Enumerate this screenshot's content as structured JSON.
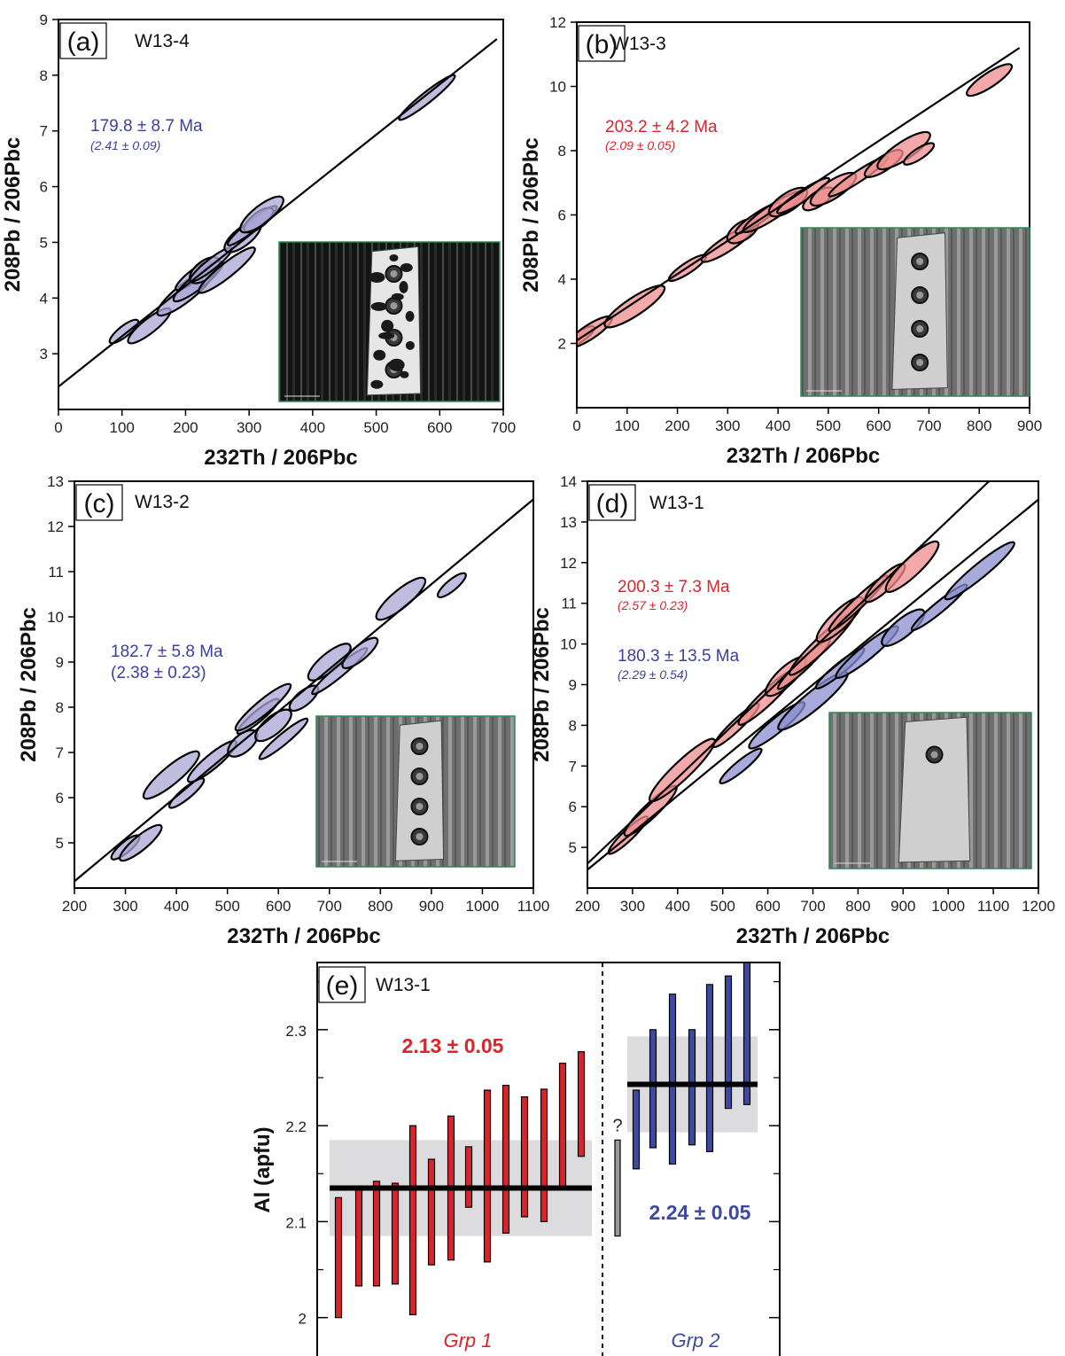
{
  "chart_data": [
    {
      "type": "scatter",
      "panel": "(a)",
      "sample": "W13-4",
      "xlabel": "232Th / 206Pbc",
      "ylabel": "208Pb / 206Pbc",
      "xlim": [
        0,
        700
      ],
      "ylim": [
        2,
        9
      ],
      "xticks": [
        0,
        100,
        200,
        300,
        400,
        500,
        600,
        700
      ],
      "yticks": [
        3,
        4,
        5,
        6,
        7,
        8,
        9
      ],
      "annotations": [
        {
          "text": "179.8 ± 8.7 Ma",
          "color": "#3b3fa0"
        },
        {
          "text": "(2.41 ± 0.09)",
          "color": "#3b3fa0",
          "italic": true
        }
      ],
      "isochrons": [
        {
          "x0": 0,
          "y0": 2.41,
          "x1": 690,
          "y1": 8.65
        }
      ],
      "series": [
        {
          "color": "#a9a6d6",
          "points": [
            {
              "x": 103,
              "y": 3.4
            },
            {
              "x": 143,
              "y": 3.5
            },
            {
              "x": 200,
              "y": 4.1
            },
            {
              "x": 212,
              "y": 4.4
            },
            {
              "x": 220,
              "y": 4.3
            },
            {
              "x": 230,
              "y": 4.5
            },
            {
              "x": 240,
              "y": 4.6
            },
            {
              "x": 265,
              "y": 4.5
            },
            {
              "x": 290,
              "y": 5.1
            },
            {
              "x": 305,
              "y": 5.3
            },
            {
              "x": 315,
              "y": 5.4
            },
            {
              "x": 320,
              "y": 5.5
            },
            {
              "x": 580,
              "y": 7.6
            }
          ]
        }
      ],
      "inset": "BSE image"
    },
    {
      "type": "scatter",
      "panel": "(b)",
      "sample": "W13-3",
      "xlabel": "232Th / 206Pbc",
      "ylabel": "208Pb / 206Pbc",
      "xlim": [
        0,
        900
      ],
      "ylim": [
        0,
        12
      ],
      "xticks": [
        0,
        100,
        200,
        300,
        400,
        500,
        600,
        700,
        800,
        900
      ],
      "yticks": [
        2,
        4,
        6,
        8,
        10,
        12
      ],
      "annotations": [
        {
          "text": "203.2 ± 4.2 Ma",
          "color": "#d9242b"
        },
        {
          "text": "(2.09 ± 0.05)",
          "color": "#d9242b",
          "italic": true
        }
      ],
      "isochrons": [
        {
          "x0": 0,
          "y0": 2.09,
          "x1": 880,
          "y1": 11.2
        }
      ],
      "series": [
        {
          "color": "#ef8c8c",
          "points": [
            {
              "x": 5,
              "y": 2.2
            },
            {
              "x": 25,
              "y": 2.35
            },
            {
              "x": 115,
              "y": 3.15
            },
            {
              "x": 220,
              "y": 4.35
            },
            {
              "x": 300,
              "y": 5.1
            },
            {
              "x": 330,
              "y": 5.5
            },
            {
              "x": 360,
              "y": 5.9
            },
            {
              "x": 390,
              "y": 6.1
            },
            {
              "x": 420,
              "y": 6.4
            },
            {
              "x": 450,
              "y": 6.6
            },
            {
              "x": 480,
              "y": 6.5
            },
            {
              "x": 510,
              "y": 6.8
            },
            {
              "x": 560,
              "y": 7.2
            },
            {
              "x": 610,
              "y": 7.6
            },
            {
              "x": 650,
              "y": 8.0
            },
            {
              "x": 680,
              "y": 7.9
            },
            {
              "x": 820,
              "y": 10.2
            }
          ]
        }
      ],
      "inset": "BSE image"
    },
    {
      "type": "scatter",
      "panel": "(c)",
      "sample": "W13-2",
      "xlabel": "232Th / 206Pbc",
      "ylabel": "208Pb / 206Pbc",
      "xlim": [
        200,
        1100
      ],
      "ylim": [
        4,
        13
      ],
      "xticks": [
        200,
        300,
        400,
        500,
        600,
        700,
        800,
        900,
        1000,
        1100
      ],
      "yticks": [
        5,
        6,
        7,
        8,
        9,
        10,
        11,
        12,
        13
      ],
      "annotations": [
        {
          "text": "182.7 ± 5.8 Ma",
          "color": "#3b3fa0"
        },
        {
          "text": "(2.38 ± 0.23)",
          "color": "#3b3fa0"
        }
      ],
      "isochrons": [
        {
          "x0": 200,
          "y0": 4.15,
          "x1": 1100,
          "y1": 12.6
        }
      ],
      "series": [
        {
          "color": "#a9a6d6",
          "points": [
            {
              "x": 300,
              "y": 4.9
            },
            {
              "x": 330,
              "y": 5.0
            },
            {
              "x": 390,
              "y": 6.5
            },
            {
              "x": 420,
              "y": 6.1
            },
            {
              "x": 470,
              "y": 6.8
            },
            {
              "x": 530,
              "y": 7.2
            },
            {
              "x": 560,
              "y": 7.8
            },
            {
              "x": 570,
              "y": 8.0
            },
            {
              "x": 590,
              "y": 7.6
            },
            {
              "x": 610,
              "y": 7.3
            },
            {
              "x": 650,
              "y": 8.2
            },
            {
              "x": 700,
              "y": 9.0
            },
            {
              "x": 720,
              "y": 8.8
            },
            {
              "x": 760,
              "y": 9.2
            },
            {
              "x": 840,
              "y": 10.4
            },
            {
              "x": 940,
              "y": 10.7
            }
          ]
        }
      ],
      "inset": "BSE image"
    },
    {
      "type": "scatter",
      "panel": "(d)",
      "sample": "W13-1",
      "xlabel": "232Th / 206Pbc",
      "ylabel": "208Pb / 206Pbc",
      "xlim": [
        200,
        1200
      ],
      "ylim": [
        4,
        14
      ],
      "xticks": [
        200,
        300,
        400,
        500,
        600,
        700,
        800,
        900,
        1000,
        1100,
        1200
      ],
      "yticks": [
        5,
        6,
        7,
        8,
        9,
        10,
        11,
        12,
        13,
        14
      ],
      "annotations": [
        {
          "text": "200.3 ± 7.3 Ma",
          "color": "#d9242b"
        },
        {
          "text": "(2.57 ± 0.23)",
          "color": "#d9242b",
          "italic": true
        },
        {
          "text": "180.3 ± 13.5 Ma",
          "color": "#3b3fa0"
        },
        {
          "text": "(2.29 ± 0.54)",
          "color": "#3b3fa0",
          "italic": true
        }
      ],
      "isochrons": [
        {
          "x0": 200,
          "y0": 4.6,
          "x1": 1100,
          "y1": 14.1
        },
        {
          "x0": 200,
          "y0": 4.45,
          "x1": 1200,
          "y1": 13.55
        }
      ],
      "series": [
        {
          "color": "#ef8c8c",
          "points": [
            {
              "x": 290,
              "y": 5.3
            },
            {
              "x": 340,
              "y": 5.9
            },
            {
              "x": 410,
              "y": 6.9
            },
            {
              "x": 530,
              "y": 8.0
            },
            {
              "x": 600,
              "y": 8.7
            },
            {
              "x": 640,
              "y": 9.2
            },
            {
              "x": 680,
              "y": 9.5
            },
            {
              "x": 720,
              "y": 10.0
            },
            {
              "x": 760,
              "y": 10.6
            },
            {
              "x": 800,
              "y": 11.0
            },
            {
              "x": 860,
              "y": 11.5
            },
            {
              "x": 920,
              "y": 11.9
            }
          ]
        },
        {
          "color": "#8b8ed0",
          "points": [
            {
              "x": 540,
              "y": 7.0
            },
            {
              "x": 620,
              "y": 8.0
            },
            {
              "x": 700,
              "y": 8.6
            },
            {
              "x": 760,
              "y": 9.4
            },
            {
              "x": 820,
              "y": 9.8
            },
            {
              "x": 900,
              "y": 10.4
            },
            {
              "x": 980,
              "y": 10.9
            },
            {
              "x": 1070,
              "y": 11.8
            }
          ]
        }
      ],
      "inset": "BSE image"
    },
    {
      "type": "bar",
      "panel": "(e)",
      "sample": "W13-1",
      "ylabel": "Al (apfu)",
      "ylim": [
        1.96,
        2.37
      ],
      "yticks": [
        2,
        2.1,
        2.2,
        2.3
      ],
      "groups": [
        {
          "name": "Grp 1",
          "color": "#d9242b",
          "mean": 2.135,
          "band": [
            2.085,
            2.185
          ],
          "label": "2.13 ± 0.05",
          "ranges": [
            [
              2.0,
              2.125
            ],
            [
              2.033,
              2.133
            ],
            [
              2.033,
              2.142
            ],
            [
              2.035,
              2.14
            ],
            [
              2.003,
              2.2
            ],
            [
              2.055,
              2.165
            ],
            [
              2.06,
              2.21
            ],
            [
              2.115,
              2.178
            ],
            [
              2.058,
              2.237
            ],
            [
              2.088,
              2.242
            ],
            [
              2.105,
              2.23
            ],
            [
              2.1,
              2.238
            ],
            [
              2.133,
              2.265
            ],
            [
              2.168,
              2.277
            ]
          ]
        },
        {
          "name": "Grp 2",
          "color": "#3d4aa0",
          "mean": 2.243,
          "band": [
            2.193,
            2.293
          ],
          "label": "2.24 ± 0.05",
          "ranges": [
            [
              2.155,
              2.237
            ],
            [
              2.177,
              2.3
            ],
            [
              2.16,
              2.337
            ],
            [
              2.18,
              2.3
            ],
            [
              2.173,
              2.347
            ],
            [
              2.218,
              2.356
            ],
            [
              2.222,
              2.37
            ]
          ]
        }
      ],
      "unassigned": {
        "label": "?",
        "range": [
          2.085,
          2.185
        ],
        "color": "#999999"
      }
    }
  ]
}
